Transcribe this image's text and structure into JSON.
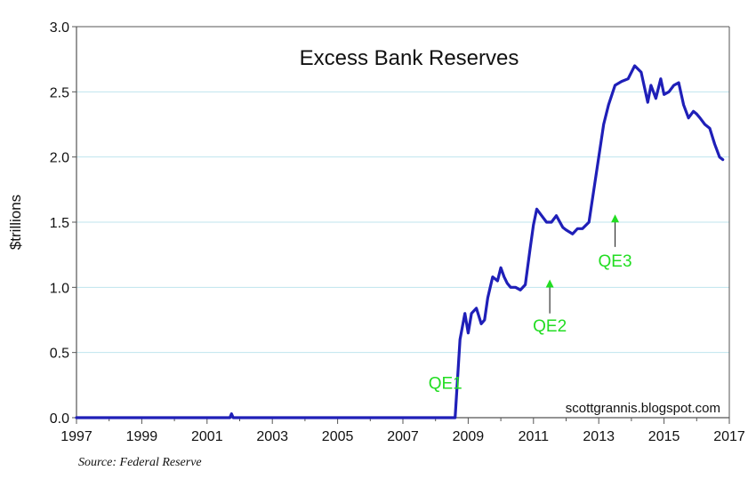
{
  "chart_data": {
    "type": "line",
    "title": "Excess Bank Reserves",
    "ylabel": "$trillions",
    "xlabel": "",
    "xlim": [
      1997,
      2017
    ],
    "ylim": [
      0.0,
      3.0
    ],
    "x_ticks": [
      "1997",
      "1999",
      "2001",
      "2003",
      "2005",
      "2007",
      "2009",
      "2011",
      "2013",
      "2015",
      "2017"
    ],
    "y_ticks": [
      "0.0",
      "0.5",
      "1.0",
      "1.5",
      "2.0",
      "2.5",
      "3.0"
    ],
    "grid": "horizontal",
    "colors": {
      "line": "#1f1fb8",
      "annotation": "#22dd22",
      "grid": "#bfe5ee",
      "axis": "#555555"
    },
    "series": [
      {
        "x": [
          1997.0,
          2001.7,
          2001.75,
          2001.8,
          2008.6,
          2008.75,
          2008.9,
          2009.0,
          2009.1,
          2009.25,
          2009.4,
          2009.5,
          2009.6,
          2009.75,
          2009.9,
          2010.0,
          2010.1,
          2010.2,
          2010.3,
          2010.45,
          2010.6,
          2010.75,
          2010.9,
          2011.0,
          2011.1,
          2011.25,
          2011.4,
          2011.55,
          2011.7,
          2011.9,
          2012.0,
          2012.2,
          2012.35,
          2012.5,
          2012.7,
          2012.85,
          2013.0,
          2013.15,
          2013.3,
          2013.5,
          2013.7,
          2013.9,
          2014.1,
          2014.3,
          2014.5,
          2014.6,
          2014.75,
          2014.9,
          2015.0,
          2015.15,
          2015.3,
          2015.45,
          2015.6,
          2015.75,
          2015.9,
          2016.0,
          2016.1,
          2016.25,
          2016.4,
          2016.55,
          2016.7,
          2016.8
        ],
        "y": [
          0.0,
          0.0,
          0.03,
          0.0,
          0.0,
          0.6,
          0.8,
          0.65,
          0.8,
          0.84,
          0.72,
          0.75,
          0.92,
          1.08,
          1.05,
          1.15,
          1.08,
          1.03,
          1.0,
          1.0,
          0.98,
          1.02,
          1.3,
          1.48,
          1.6,
          1.55,
          1.5,
          1.5,
          1.55,
          1.46,
          1.44,
          1.41,
          1.45,
          1.45,
          1.5,
          1.75,
          2.0,
          2.25,
          2.4,
          2.55,
          2.58,
          2.6,
          2.7,
          2.65,
          2.42,
          2.55,
          2.45,
          2.6,
          2.48,
          2.5,
          2.55,
          2.57,
          2.4,
          2.3,
          2.35,
          2.33,
          2.3,
          2.25,
          2.22,
          2.1,
          2.0,
          1.98
        ]
      }
    ],
    "annotations": [
      {
        "text": "QE1",
        "x": 2008.3,
        "y": 0.22,
        "arrow": false
      },
      {
        "text": "QE2",
        "x": 2011.5,
        "y": 0.66,
        "arrow": true,
        "arrow_from": 0.8,
        "arrow_to": 1.06
      },
      {
        "text": "QE3",
        "x": 2013.5,
        "y": 1.16,
        "arrow": true,
        "arrow_from": 1.31,
        "arrow_to": 1.56
      }
    ],
    "watermark": "scottgrannis.blogspot.com",
    "source": "Source: Federal Reserve"
  }
}
